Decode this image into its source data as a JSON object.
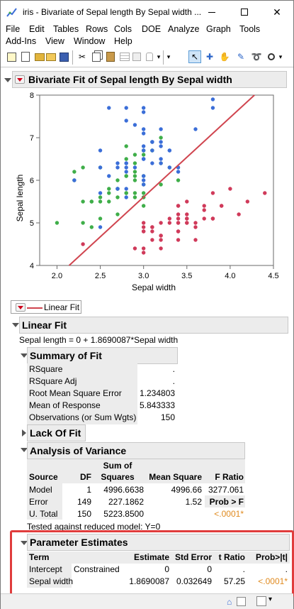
{
  "window": {
    "title": "iris - Bivariate of Sepal length By Sepal width ..."
  },
  "menu": {
    "row1": [
      "File",
      "Edit",
      "Tables",
      "Rows",
      "Cols",
      "DOE",
      "Analyze",
      "Graph",
      "Tools"
    ],
    "row2": [
      "Add-Ins",
      "View",
      "Window",
      "Help"
    ]
  },
  "report": {
    "title": "Bivariate Fit of Sepal length By Sepal width",
    "legend_label": "Linear Fit",
    "linear_fit": {
      "header": "Linear Fit",
      "equation": "Sepal length = 0 + 1.8690087*Sepal width"
    },
    "summary_of_fit": {
      "header": "Summary of Fit",
      "rows": [
        {
          "label": "RSquare",
          "value": "."
        },
        {
          "label": "RSquare Adj",
          "value": "."
        },
        {
          "label": "Root Mean Square Error",
          "value": "1.234803"
        },
        {
          "label": "Mean of Response",
          "value": "5.843333"
        },
        {
          "label": "Observations (or Sum Wgts)",
          "value": "150"
        }
      ]
    },
    "lack_of_fit": {
      "header": "Lack Of Fit"
    },
    "anova": {
      "header": "Analysis of Variance",
      "col_source": "Source",
      "col_df": "DF",
      "col_ss_top": "Sum of",
      "col_ss_bottom": "Squares",
      "col_ms": "Mean Square",
      "col_f": "F Ratio",
      "rows": [
        {
          "source": "Model",
          "df": "1",
          "ss": "4996.6638",
          "ms": "4996.66",
          "f": "3277.061"
        },
        {
          "source": "Error",
          "df": "149",
          "ss": "227.1862",
          "ms": "1.52",
          "f": "Prob > F"
        },
        {
          "source": "U. Total",
          "df": "150",
          "ss": "5223.8500",
          "ms": "",
          "f": "<.0001*"
        }
      ],
      "note": "Tested against reduced model: Y=0"
    },
    "parameter_estimates": {
      "header": "Parameter Estimates",
      "col_term": "Term",
      "col_estimate": "Estimate",
      "col_stderr": "Std Error",
      "col_t": "t Ratio",
      "col_p": "Prob>|t|",
      "rows": [
        {
          "term": "Intercept",
          "note": "Constrained",
          "estimate": "0",
          "stderr": "0",
          "t": ".",
          "p": "."
        },
        {
          "term": "Sepal width",
          "note": "",
          "estimate": "1.8690087",
          "stderr": "0.032649",
          "t": "57.25",
          "p": "<.0001*"
        }
      ]
    }
  },
  "colors": {
    "setosa": "#d03a5a",
    "versicolor": "#3fae49",
    "virginica": "#3b6ed8",
    "fit_line": "#d0454f",
    "orange": "#e08a1e"
  },
  "chart_data": {
    "type": "scatter",
    "xlabel": "Sepal width",
    "ylabel": "Sepal length",
    "xlim": [
      1.8,
      4.5
    ],
    "ylim": [
      4,
      8
    ],
    "xticks": [
      "2.0",
      "2.5",
      "3.0",
      "3.5",
      "4.0",
      "4.5"
    ],
    "yticks": [
      "4",
      "5",
      "6",
      "7",
      "8"
    ],
    "fit_line": {
      "intercept": 0,
      "slope": 1.8690087
    },
    "series": [
      {
        "color": "#d03a5a",
        "x": [
          3.5,
          3.0,
          3.2,
          3.1,
          3.6,
          3.9,
          3.4,
          3.4,
          2.9,
          3.1,
          3.7,
          3.4,
          3.0,
          3.0,
          4.0,
          4.4,
          3.9,
          3.5,
          3.8,
          3.8,
          3.4,
          3.7,
          3.6,
          3.3,
          3.4,
          3.0,
          3.4,
          3.5,
          3.4,
          3.2,
          3.1,
          3.4,
          4.1,
          4.2,
          3.1,
          3.2,
          3.5,
          3.6,
          3.0,
          3.4,
          3.5,
          2.3,
          3.2,
          3.5,
          3.8,
          3.0,
          3.8,
          3.2,
          3.7,
          3.3
        ],
        "y": [
          5.1,
          4.9,
          4.7,
          4.6,
          5.0,
          5.4,
          4.6,
          5.0,
          4.4,
          4.9,
          5.4,
          4.8,
          4.8,
          4.3,
          5.8,
          5.7,
          5.4,
          5.1,
          5.7,
          5.1,
          5.4,
          5.1,
          4.6,
          5.1,
          4.8,
          5.0,
          5.0,
          5.2,
          5.2,
          4.7,
          4.8,
          5.4,
          5.2,
          5.5,
          4.9,
          5.0,
          5.5,
          4.9,
          4.4,
          5.1,
          5.0,
          4.5,
          4.4,
          5.0,
          5.1,
          4.8,
          5.1,
          4.6,
          5.3,
          5.0
        ]
      },
      {
        "color": "#3fae49",
        "x": [
          3.2,
          3.2,
          3.1,
          2.3,
          2.8,
          2.8,
          3.3,
          2.4,
          2.9,
          2.7,
          2.0,
          3.0,
          2.2,
          2.9,
          2.9,
          3.1,
          3.0,
          2.7,
          2.2,
          2.5,
          3.2,
          2.8,
          2.5,
          2.8,
          2.9,
          3.0,
          2.8,
          3.0,
          2.9,
          2.6,
          2.4,
          2.4,
          2.7,
          2.7,
          3.0,
          3.4,
          3.1,
          2.3,
          3.0,
          2.5,
          2.6,
          3.0,
          2.6,
          2.3,
          2.7,
          3.0,
          2.9,
          2.9,
          2.5,
          2.8
        ],
        "y": [
          7.0,
          6.4,
          6.9,
          5.5,
          6.5,
          5.7,
          6.3,
          4.9,
          6.6,
          5.2,
          5.0,
          5.9,
          6.0,
          6.1,
          5.6,
          6.7,
          5.6,
          5.8,
          6.2,
          5.6,
          5.9,
          6.1,
          6.3,
          6.1,
          6.4,
          6.6,
          6.8,
          6.7,
          6.0,
          5.7,
          5.5,
          5.5,
          5.8,
          6.0,
          5.4,
          6.0,
          6.7,
          6.3,
          5.6,
          5.5,
          5.5,
          6.1,
          5.8,
          5.0,
          5.6,
          5.7,
          5.7,
          6.2,
          5.1,
          5.7
        ]
      },
      {
        "color": "#3b6ed8",
        "x": [
          3.3,
          2.7,
          3.0,
          2.9,
          3.0,
          3.0,
          2.5,
          2.9,
          2.5,
          3.6,
          3.2,
          2.7,
          3.0,
          2.5,
          2.8,
          3.2,
          3.0,
          3.8,
          2.6,
          2.2,
          3.2,
          2.8,
          2.8,
          2.7,
          3.3,
          3.2,
          2.8,
          3.0,
          2.8,
          3.0,
          2.8,
          3.8,
          2.8,
          2.8,
          2.6,
          3.0,
          3.4,
          3.1,
          3.0,
          3.1,
          3.1,
          3.1,
          2.7,
          3.2,
          3.3,
          3.0,
          2.5,
          3.0,
          3.4,
          3.0
        ],
        "y": [
          6.3,
          5.8,
          7.1,
          6.3,
          6.5,
          7.6,
          4.9,
          7.3,
          6.7,
          7.2,
          6.5,
          6.4,
          6.8,
          5.7,
          5.8,
          6.4,
          6.5,
          7.7,
          7.7,
          6.0,
          6.9,
          5.6,
          7.7,
          6.3,
          6.7,
          7.2,
          6.2,
          6.1,
          6.4,
          7.2,
          7.4,
          7.9,
          6.4,
          6.3,
          6.1,
          7.7,
          6.3,
          6.4,
          6.0,
          6.9,
          6.7,
          6.9,
          5.8,
          6.8,
          6.7,
          6.7,
          6.3,
          6.5,
          6.2,
          5.9
        ]
      }
    ]
  }
}
